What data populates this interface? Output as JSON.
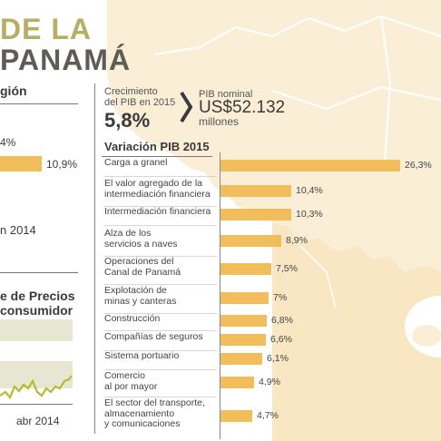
{
  "title": {
    "line1": "DE LA",
    "line2": "PANAMÁ"
  },
  "left_panel": {
    "heading": "gión",
    "value_top": "4%",
    "bar_value": "10,9%",
    "bar_fraction": 0.415,
    "year_label": "n 2014",
    "ipc_line1": "e de Precios",
    "ipc_line2": "consumidor",
    "axis_label": "abr 2014"
  },
  "kpis": {
    "growth_label_1": "Crecimiento",
    "growth_label_2": "del PIB en 2015",
    "growth_value": "5,8%",
    "gdp_label": "PIB nominal",
    "gdp_value": "US$52.132",
    "gdp_unit": "millones"
  },
  "colors": {
    "bar": "#f2be5c",
    "map": "#fbeed6",
    "title_accent": "#b7ad63",
    "title_dark": "#5f5b55"
  },
  "chart_data": {
    "type": "bar",
    "orientation": "horizontal",
    "title": "Variación PIB 2015",
    "categories": [
      "Carga a granel",
      "El valor agregado de la intermediación financiera",
      "Intermediación financiera",
      "Alza de los servicios a naves",
      "Operaciones del Canal de Panamá",
      "Explotación de minas y canteras",
      "Construcción",
      "Compañías de seguros",
      "Sistema portuario",
      "Comercio al por mayor",
      "El sector del transporte, almacenamiento y comunicaciones"
    ],
    "category_lines": [
      [
        "Carga a granel"
      ],
      [
        "El valor agregado de la",
        "intermediación financiera"
      ],
      [
        "Intermediación financiera"
      ],
      [
        "Alza de los",
        "servicios a naves"
      ],
      [
        "Operaciones del",
        "Canal de Panamá"
      ],
      [
        "Explotación de",
        "minas y canteras"
      ],
      [
        "Construcción"
      ],
      [
        "Compañías de seguros"
      ],
      [
        "Sistema portuario"
      ],
      [
        "Comercio",
        "al por mayor"
      ],
      [
        "El sector del transporte,",
        "almacenamiento",
        "y comunicaciones"
      ]
    ],
    "values": [
      26.3,
      10.4,
      10.3,
      8.9,
      7.5,
      7,
      6.8,
      6.6,
      6.1,
      4.9,
      4.7
    ],
    "value_labels": [
      "26,3%",
      "10,4%",
      "10,3%",
      "8,9%",
      "7,5%",
      "7%",
      "6,8%",
      "6,6%",
      "6,1%",
      "4,9%",
      "4,7%"
    ],
    "xlim": [
      0,
      26.3
    ],
    "grid": false,
    "legend": "none"
  }
}
